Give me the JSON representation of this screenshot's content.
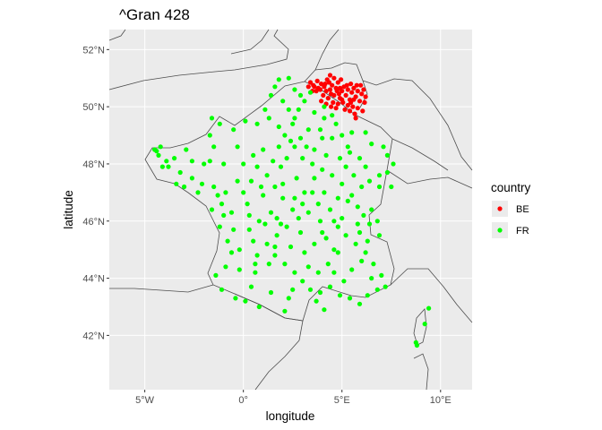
{
  "chart_data": {
    "type": "scatter",
    "title": "^Gran 428",
    "xlabel": "longitude",
    "ylabel": "latitude",
    "xlim": [
      -6.8,
      11.6
    ],
    "ylim": [
      40.1,
      52.7
    ],
    "x_ticks": [
      {
        "value": -5,
        "label": "5°W"
      },
      {
        "value": 0,
        "label": "0°"
      },
      {
        "value": 5,
        "label": "5°E"
      },
      {
        "value": 10,
        "label": "10°E"
      }
    ],
    "y_ticks": [
      {
        "value": 42,
        "label": "42°N"
      },
      {
        "value": 44,
        "label": "44°N"
      },
      {
        "value": 46,
        "label": "46°N"
      },
      {
        "value": 48,
        "label": "48°N"
      },
      {
        "value": 50,
        "label": "50°N"
      },
      {
        "value": 52,
        "label": "52°N"
      }
    ],
    "grid": true,
    "background": "#ebebeb",
    "legend": {
      "title": "country",
      "position": "right",
      "entries": [
        {
          "label": "BE",
          "color": "#ff0000"
        },
        {
          "label": "FR",
          "color": "#00ff00"
        }
      ]
    },
    "series": [
      {
        "name": "BE",
        "color": "#ff0000",
        "points": [
          [
            3.6,
            50.7
          ],
          [
            3.8,
            50.65
          ],
          [
            3.9,
            50.6
          ],
          [
            4.1,
            50.7
          ],
          [
            4.2,
            50.55
          ],
          [
            4.35,
            50.85
          ],
          [
            4.4,
            50.6
          ],
          [
            4.5,
            50.75
          ],
          [
            4.6,
            50.4
          ],
          [
            4.7,
            50.65
          ],
          [
            4.8,
            50.85
          ],
          [
            4.85,
            50.45
          ],
          [
            4.9,
            50.3
          ],
          [
            5.0,
            50.55
          ],
          [
            5.1,
            50.7
          ],
          [
            5.2,
            50.4
          ],
          [
            5.3,
            50.6
          ],
          [
            5.4,
            50.25
          ],
          [
            5.5,
            50.5
          ],
          [
            5.6,
            50.65
          ],
          [
            5.7,
            50.35
          ],
          [
            5.8,
            50.55
          ],
          [
            5.9,
            50.2
          ],
          [
            6.0,
            50.45
          ],
          [
            6.1,
            50.6
          ],
          [
            6.2,
            50.35
          ],
          [
            5.75,
            50.75
          ],
          [
            5.45,
            50.8
          ],
          [
            4.95,
            50.95
          ],
          [
            4.6,
            51.0
          ],
          [
            4.25,
            50.95
          ],
          [
            3.95,
            50.8
          ],
          [
            3.7,
            50.55
          ],
          [
            4.05,
            50.4
          ],
          [
            4.3,
            50.3
          ],
          [
            4.55,
            50.15
          ],
          [
            4.8,
            50.1
          ],
          [
            5.05,
            50.15
          ],
          [
            5.3,
            50.05
          ],
          [
            5.55,
            50.0
          ],
          [
            5.8,
            49.95
          ],
          [
            5.65,
            49.75
          ],
          [
            5.4,
            49.85
          ],
          [
            5.15,
            49.9
          ],
          [
            4.7,
            49.95
          ],
          [
            4.45,
            50.0
          ],
          [
            4.2,
            50.1
          ],
          [
            3.95,
            50.2
          ],
          [
            3.5,
            50.55
          ],
          [
            3.3,
            50.7
          ],
          [
            3.4,
            50.85
          ],
          [
            3.75,
            50.9
          ],
          [
            4.15,
            50.8
          ],
          [
            4.45,
            50.45
          ],
          [
            5.25,
            50.75
          ],
          [
            5.95,
            50.75
          ],
          [
            6.15,
            50.15
          ],
          [
            6.05,
            49.85
          ],
          [
            5.45,
            50.15
          ],
          [
            4.9,
            50.65
          ],
          [
            4.4,
            51.1
          ],
          [
            4.75,
            50.55
          ],
          [
            3.55,
            50.75
          ],
          [
            5.0,
            50.25
          ],
          [
            5.6,
            50.25
          ],
          [
            5.7,
            49.6
          ]
        ]
      },
      {
        "name": "FR",
        "color": "#00ff00",
        "points": [
          [
            -4.5,
            48.5
          ],
          [
            -4.4,
            48.45
          ],
          [
            -4.2,
            48.6
          ],
          [
            -4.3,
            48.3
          ],
          [
            -3.9,
            48.1
          ],
          [
            -3.5,
            48.2
          ],
          [
            -3.8,
            47.9
          ],
          [
            -3.2,
            47.7
          ],
          [
            -2.9,
            48.5
          ],
          [
            -2.6,
            47.5
          ],
          [
            -2.1,
            47.3
          ],
          [
            -1.7,
            48.1
          ],
          [
            -1.5,
            47.2
          ],
          [
            -1.3,
            46.9
          ],
          [
            -1.1,
            46.6
          ],
          [
            -1.0,
            46.2
          ],
          [
            -1.2,
            45.8
          ],
          [
            -0.8,
            45.3
          ],
          [
            -0.6,
            44.9
          ],
          [
            -0.9,
            44.4
          ],
          [
            -1.1,
            43.6
          ],
          [
            -0.4,
            43.3
          ],
          [
            0.1,
            43.2
          ],
          [
            0.4,
            43.7
          ],
          [
            0.6,
            44.2
          ],
          [
            0.7,
            44.8
          ],
          [
            0.3,
            45.7
          ],
          [
            0.2,
            46.6
          ],
          [
            0.4,
            47.4
          ],
          [
            0.0,
            48.0
          ],
          [
            -0.3,
            48.6
          ],
          [
            -0.5,
            49.2
          ],
          [
            -1.2,
            49.4
          ],
          [
            -1.6,
            49.6
          ],
          [
            0.1,
            49.5
          ],
          [
            0.7,
            49.4
          ],
          [
            1.1,
            49.9
          ],
          [
            1.4,
            50.4
          ],
          [
            1.6,
            50.7
          ],
          [
            1.8,
            50.95
          ],
          [
            2.3,
            51.0
          ],
          [
            2.6,
            50.6
          ],
          [
            2.9,
            50.4
          ],
          [
            3.1,
            50.2
          ],
          [
            2.8,
            49.9
          ],
          [
            2.3,
            49.9
          ],
          [
            2.5,
            49.4
          ],
          [
            2.1,
            49.0
          ],
          [
            2.4,
            48.8
          ],
          [
            2.6,
            48.6
          ],
          [
            2.9,
            48.9
          ],
          [
            3.3,
            49.2
          ],
          [
            3.9,
            49.2
          ],
          [
            4.1,
            49.6
          ],
          [
            4.5,
            49.7
          ],
          [
            4.7,
            49.4
          ],
          [
            5.0,
            49.0
          ],
          [
            5.5,
            49.1
          ],
          [
            6.2,
            49.1
          ],
          [
            6.5,
            48.7
          ],
          [
            7.1,
            48.6
          ],
          [
            7.3,
            48.3
          ],
          [
            7.6,
            48.0
          ],
          [
            7.3,
            47.7
          ],
          [
            6.9,
            47.6
          ],
          [
            6.4,
            47.4
          ],
          [
            6.0,
            47.2
          ],
          [
            5.5,
            46.9
          ],
          [
            5.0,
            47.3
          ],
          [
            4.5,
            47.6
          ],
          [
            4.0,
            47.8
          ],
          [
            3.6,
            47.5
          ],
          [
            3.1,
            47.0
          ],
          [
            2.6,
            46.8
          ],
          [
            2.0,
            46.8
          ],
          [
            1.6,
            47.2
          ],
          [
            1.2,
            47.6
          ],
          [
            1.5,
            48.1
          ],
          [
            1.9,
            47.9
          ],
          [
            2.2,
            48.2
          ],
          [
            3.0,
            48.2
          ],
          [
            3.5,
            48.0
          ],
          [
            4.2,
            48.3
          ],
          [
            4.9,
            48.2
          ],
          [
            5.3,
            48.6
          ],
          [
            5.9,
            48.2
          ],
          [
            6.2,
            47.9
          ],
          [
            5.6,
            47.6
          ],
          [
            4.8,
            46.8
          ],
          [
            4.4,
            46.4
          ],
          [
            3.9,
            46.0
          ],
          [
            3.3,
            46.3
          ],
          [
            2.8,
            46.1
          ],
          [
            2.2,
            45.8
          ],
          [
            1.7,
            45.5
          ],
          [
            1.2,
            45.2
          ],
          [
            1.6,
            44.8
          ],
          [
            2.1,
            44.5
          ],
          [
            2.6,
            44.2
          ],
          [
            3.0,
            43.9
          ],
          [
            3.4,
            43.6
          ],
          [
            3.9,
            43.5
          ],
          [
            4.4,
            43.7
          ],
          [
            4.9,
            43.4
          ],
          [
            5.4,
            43.3
          ],
          [
            5.9,
            43.1
          ],
          [
            6.3,
            43.4
          ],
          [
            6.8,
            43.6
          ],
          [
            7.2,
            43.7
          ],
          [
            7.0,
            44.1
          ],
          [
            6.6,
            44.5
          ],
          [
            6.2,
            44.9
          ],
          [
            5.7,
            45.2
          ],
          [
            5.2,
            45.5
          ],
          [
            4.8,
            45.8
          ],
          [
            5.9,
            45.6
          ],
          [
            6.4,
            45.9
          ],
          [
            6.8,
            46.0
          ],
          [
            6.5,
            46.4
          ],
          [
            6.1,
            46.2
          ],
          [
            4.2,
            45.4
          ],
          [
            3.6,
            45.2
          ],
          [
            3.1,
            44.9
          ],
          [
            2.4,
            45.1
          ],
          [
            1.9,
            45.9
          ],
          [
            1.4,
            46.3
          ],
          [
            0.8,
            46.0
          ],
          [
            0.5,
            45.3
          ],
          [
            -0.2,
            45.0
          ],
          [
            -0.5,
            45.7
          ],
          [
            -0.9,
            47.0
          ],
          [
            -0.3,
            47.4
          ],
          [
            0.7,
            47.9
          ],
          [
            1.0,
            48.5
          ],
          [
            1.8,
            48.6
          ],
          [
            3.6,
            48.5
          ],
          [
            4.0,
            48.9
          ],
          [
            4.5,
            48.9
          ],
          [
            5.2,
            47.9
          ],
          [
            3.8,
            46.6
          ],
          [
            2.5,
            46.4
          ],
          [
            1.0,
            46.9
          ],
          [
            -2.0,
            48.0
          ],
          [
            -1.5,
            48.6
          ],
          [
            -2.3,
            47.0
          ],
          [
            0.3,
            46.2
          ],
          [
            1.3,
            44.5
          ],
          [
            3.3,
            44.4
          ],
          [
            4.8,
            44.9
          ],
          [
            5.5,
            44.3
          ],
          [
            8.8,
            41.65
          ],
          [
            9.2,
            42.4
          ],
          [
            9.4,
            42.95
          ],
          [
            8.75,
            41.75
          ],
          [
            2.1,
            42.85
          ],
          [
            4.6,
            45.0
          ],
          [
            6.0,
            44.6
          ],
          [
            3.5,
            47.0
          ],
          [
            2.7,
            47.5
          ],
          [
            1.8,
            49.3
          ],
          [
            3.6,
            49.8
          ],
          [
            4.0,
            45.6
          ],
          [
            5.0,
            46.1
          ],
          [
            2.3,
            43.3
          ],
          [
            1.4,
            43.5
          ],
          [
            0.8,
            43.0
          ],
          [
            -0.2,
            44.3
          ],
          [
            3.7,
            43.2
          ],
          [
            4.1,
            42.9
          ],
          [
            5.8,
            45.9
          ],
          [
            6.9,
            47.2
          ],
          [
            5.4,
            48.4
          ],
          [
            3.2,
            48.6
          ],
          [
            0.5,
            48.3
          ],
          [
            -1.0,
            48.0
          ],
          [
            -3.0,
            47.2
          ],
          [
            -1.6,
            46.4
          ],
          [
            0.0,
            47.0
          ],
          [
            1.6,
            45.1
          ],
          [
            2.9,
            45.6
          ],
          [
            4.3,
            44.5
          ],
          [
            5.1,
            43.9
          ],
          [
            6.5,
            44.0
          ],
          [
            7.5,
            47.2
          ],
          [
            6.3,
            45.3
          ],
          [
            4.6,
            46.0
          ],
          [
            3.0,
            46.6
          ],
          [
            1.1,
            45.9
          ],
          [
            -0.6,
            46.3
          ],
          [
            2.0,
            50.2
          ],
          [
            2.6,
            49.6
          ],
          [
            3.4,
            50.5
          ],
          [
            4.1,
            50.0
          ],
          [
            1.3,
            49.6
          ],
          [
            -1.7,
            49.0
          ],
          [
            -2.6,
            48.1
          ],
          [
            -3.4,
            47.3
          ],
          [
            -4.1,
            47.9
          ],
          [
            0.9,
            47.2
          ],
          [
            2.0,
            47.3
          ],
          [
            5.8,
            46.5
          ],
          [
            3.8,
            44.2
          ],
          [
            2.5,
            43.6
          ],
          [
            4.6,
            44.2
          ],
          [
            6.9,
            45.5
          ],
          [
            5.3,
            46.7
          ],
          [
            4.1,
            47.0
          ],
          [
            1.7,
            46.1
          ],
          [
            0.6,
            44.5
          ],
          [
            -1.4,
            44.1
          ]
        ]
      }
    ]
  },
  "map": {
    "land_color": "#ebebeb",
    "border_color": "#4d4d4d"
  }
}
